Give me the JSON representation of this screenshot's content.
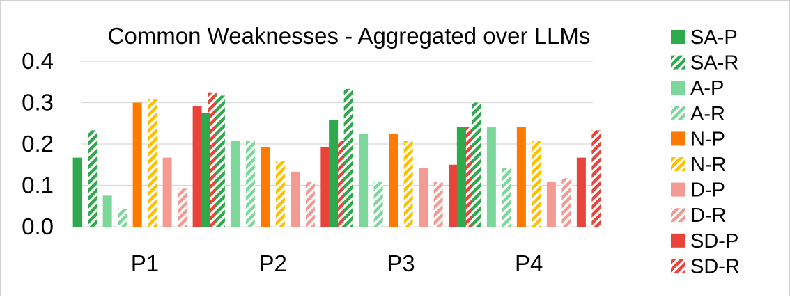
{
  "chart_data": {
    "type": "bar",
    "title": "Common Weaknesses - Aggregated over LLMs",
    "xlabel": "",
    "ylabel": "",
    "ylim": [
      0,
      0.4
    ],
    "yticks": [
      "0.0",
      "0.1",
      "0.2",
      "0.3",
      "0.4"
    ],
    "categories": [
      "P1",
      "P2",
      "P3",
      "P4"
    ],
    "grid": true,
    "legend_position": "right",
    "series": [
      {
        "name": "SA-P",
        "color": "#2eaa4c",
        "pattern": "solid",
        "values": [
          0.167,
          0.275,
          0.258,
          0.242
        ]
      },
      {
        "name": "SA-R",
        "color": "#2eaa4c",
        "pattern": "hatch",
        "values": [
          0.233,
          0.317,
          0.333,
          0.3
        ]
      },
      {
        "name": "A-P",
        "color": "#7bd79a",
        "pattern": "solid",
        "values": [
          0.075,
          0.208,
          0.225,
          0.242
        ]
      },
      {
        "name": "A-R",
        "color": "#7bd79a",
        "pattern": "hatch",
        "values": [
          0.042,
          0.208,
          0.108,
          0.142
        ]
      },
      {
        "name": "N-P",
        "color": "#ff7a00",
        "pattern": "solid",
        "values": [
          0.3,
          0.192,
          0.225,
          0.242
        ]
      },
      {
        "name": "N-R",
        "color": "#ffc000",
        "pattern": "hatch",
        "values": [
          0.308,
          0.158,
          0.208,
          0.208
        ]
      },
      {
        "name": "D-P",
        "color": "#f59a93",
        "pattern": "solid",
        "values": [
          0.167,
          0.133,
          0.142,
          0.108
        ]
      },
      {
        "name": "D-R",
        "color": "#f59a93",
        "pattern": "hatch",
        "values": [
          0.092,
          0.108,
          0.108,
          0.117
        ]
      },
      {
        "name": "SD-P",
        "color": "#e8443a",
        "pattern": "solid",
        "values": [
          0.292,
          0.192,
          0.15,
          0.167
        ]
      },
      {
        "name": "SD-R",
        "color": "#e8443a",
        "pattern": "hatch",
        "values": [
          0.325,
          0.208,
          0.242,
          0.233
        ]
      }
    ]
  }
}
